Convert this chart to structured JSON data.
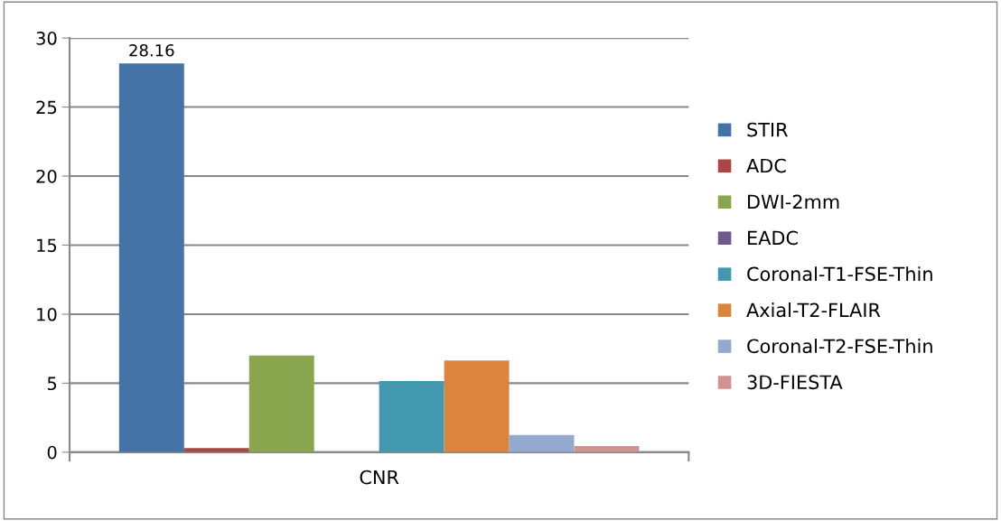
{
  "chart_data": {
    "type": "bar",
    "categories": [
      "CNR"
    ],
    "series": [
      {
        "name": "STIR",
        "color": "#4573a7",
        "values": [
          28.16
        ],
        "value_labels": [
          "28.16"
        ]
      },
      {
        "name": "ADC",
        "color": "#aa4643",
        "values": [
          0.3
        ]
      },
      {
        "name": "DWI-2mm",
        "color": "#89a54e",
        "values": [
          7.0
        ]
      },
      {
        "name": "EADC",
        "color": "#71588f",
        "values": [
          null
        ]
      },
      {
        "name": "Coronal-T1-FSE-Thin",
        "color": "#4198af",
        "values": [
          5.15
        ]
      },
      {
        "name": "Axial-T2-FLAIR",
        "color": "#db843d",
        "values": [
          6.65
        ]
      },
      {
        "name": "Coronal-T2-FSE-Thin",
        "color": "#93a9cf",
        "values": [
          1.25
        ]
      },
      {
        "name": "3D-FIESTA",
        "color": "#d19392",
        "values": [
          0.45
        ]
      }
    ],
    "ylim": [
      0,
      30
    ],
    "yticks": [
      0,
      5,
      10,
      15,
      20,
      25,
      30
    ],
    "grid": "y",
    "legend": "right"
  }
}
